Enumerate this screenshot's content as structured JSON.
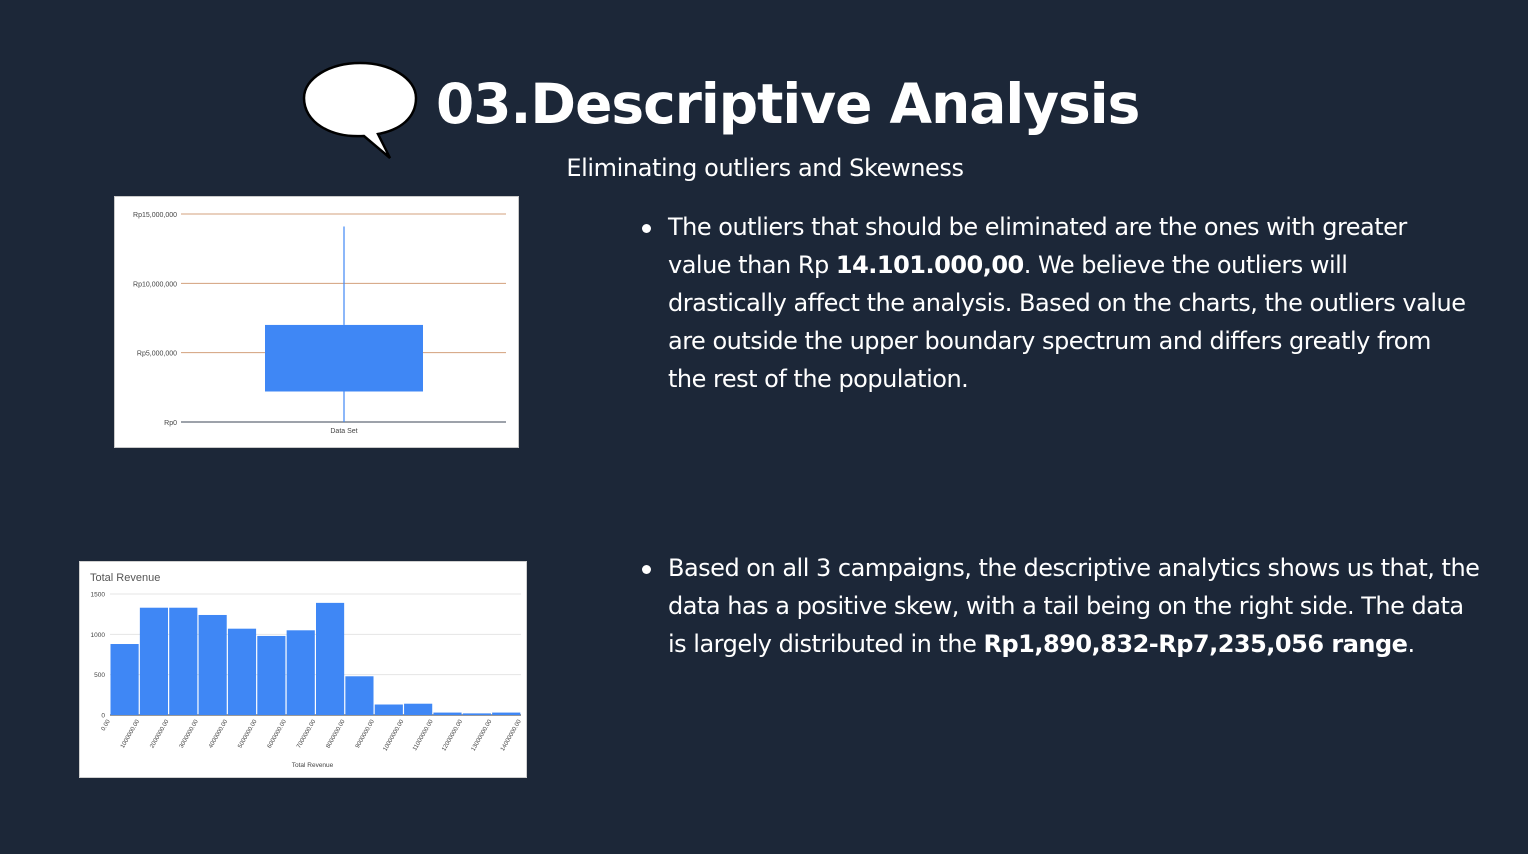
{
  "header": {
    "title": "03.Descriptive Analysis",
    "subtitle": "Eliminating outliers and Skewness"
  },
  "bullets": [
    {
      "parts": [
        {
          "text": "The outliers that should be eliminated are the ones with greater value than Rp ",
          "bold": false
        },
        {
          "text": "14.101.000,00",
          "bold": true
        },
        {
          "text": ". We believe the outliers will drastically affect the analysis. Based on the charts, the outliers value are outside the upper boundary spectrum and differs greatly from the rest of the population.",
          "bold": false
        }
      ]
    },
    {
      "parts": [
        {
          "text": "Based on all 3 campaigns, the descriptive analytics shows us that, the data has a positive skew, with a tail being on the right side. The data is largely distributed in the ",
          "bold": false
        },
        {
          "text": "Rp1,890,832-Rp7,235,056 range",
          "bold": true
        },
        {
          "text": ".",
          "bold": false
        }
      ]
    }
  ],
  "chart_data": [
    {
      "type": "box",
      "title": "",
      "xlabel": "Data Set",
      "category": "Data Set",
      "ylim": [
        0,
        15000000
      ],
      "yticks": [
        0,
        5000000,
        10000000,
        15000000
      ],
      "ytick_labels": [
        "Rp0",
        "Rp5,000,000",
        "Rp10,000,000",
        "Rp15,000,000"
      ],
      "whisker_low": 0,
      "q1": 2200000,
      "q3": 7000000,
      "whisker_high": 14100000,
      "box_color": "#3f87f5",
      "grid_color": "#d3a07c"
    },
    {
      "type": "bar",
      "title": "Total Revenue",
      "xlabel": "Total Revenue",
      "ylabel": "",
      "ylim": [
        0,
        1500
      ],
      "yticks": [
        0,
        500,
        1000,
        1500
      ],
      "bin_edges": [
        0,
        1000000,
        2000000,
        3000000,
        4000000,
        5000000,
        6000000,
        7000000,
        8000000,
        9000000,
        10000000,
        11000000,
        12000000,
        13000000,
        14000000
      ],
      "xtick_labels": [
        "0.00",
        "1000000.00",
        "2000000.00",
        "3000000.00",
        "4000000.00",
        "5000000.00",
        "6000000.00",
        "7000000.00",
        "8000000.00",
        "9000000.00",
        "10000000.00",
        "11000000.00",
        "12000000.00",
        "13000000.00",
        "14000000.00"
      ],
      "values": [
        880,
        1330,
        1330,
        1240,
        1070,
        980,
        1050,
        1390,
        480,
        130,
        140,
        30,
        20,
        30
      ],
      "bar_color": "#3f87f5"
    }
  ]
}
